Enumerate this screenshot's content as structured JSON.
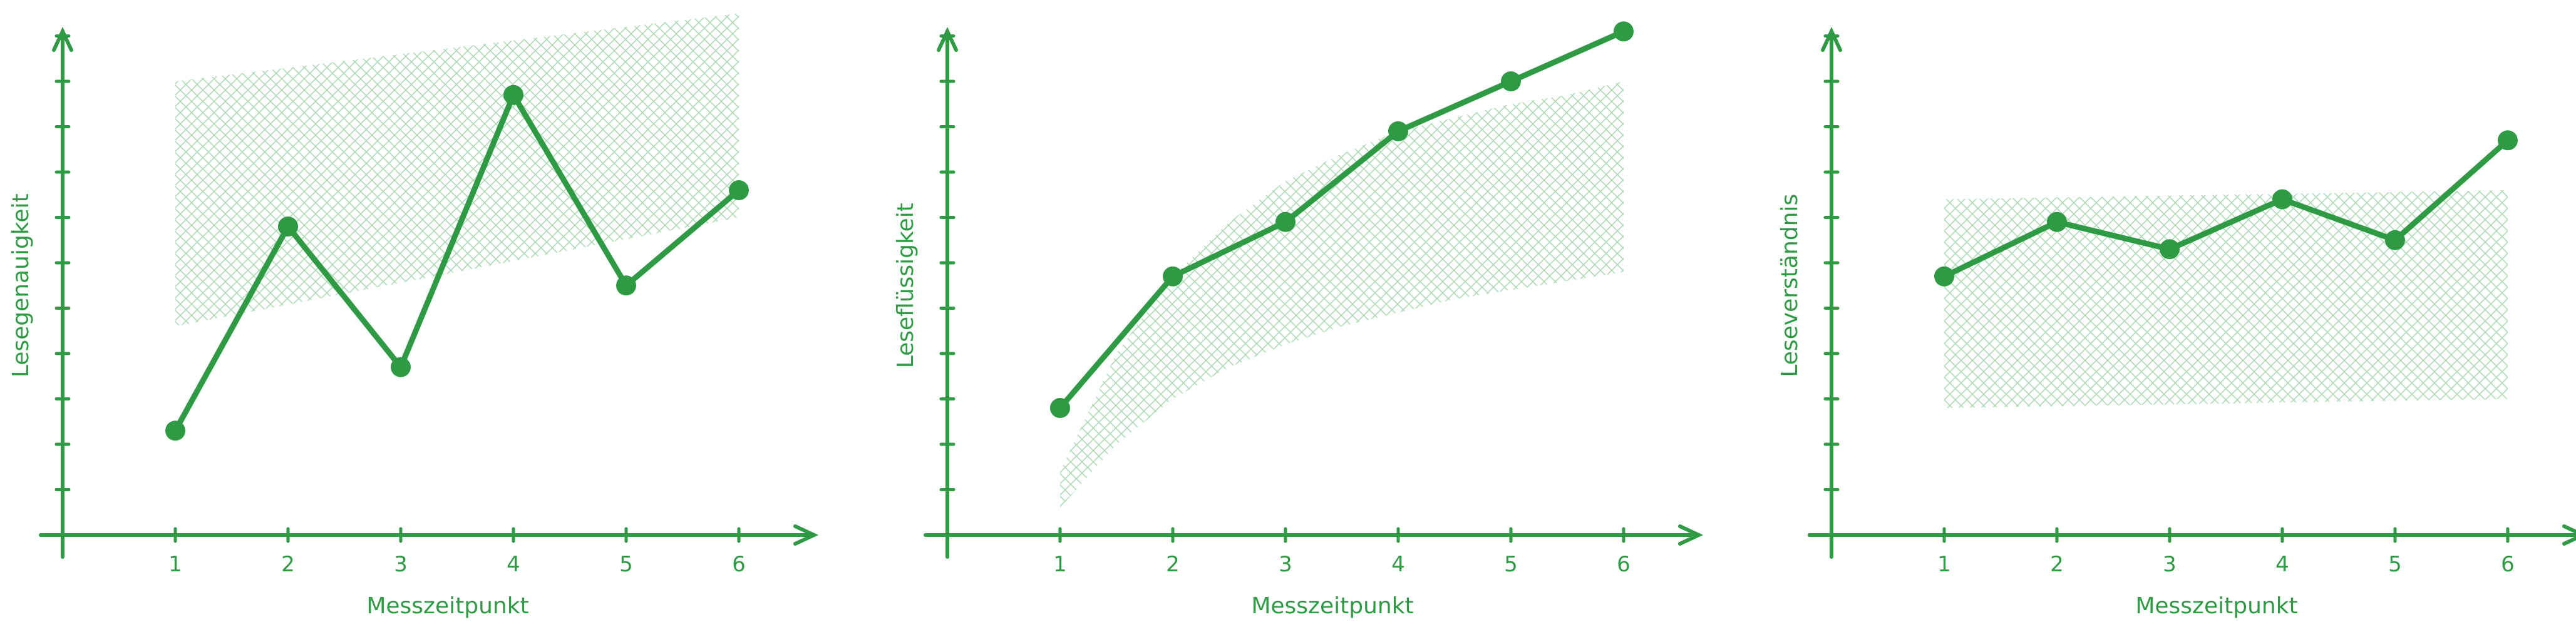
{
  "chart_data": [
    {
      "type": "line",
      "xlabel": "Messzeitpunkt",
      "ylabel": "Lesegenauigkeit",
      "x": [
        1,
        2,
        3,
        4,
        5,
        6
      ],
      "xlim": [
        0,
        6.5
      ],
      "ylim": [
        0,
        11
      ],
      "y_tick_count": 11,
      "series": [
        {
          "values": [
            2.3,
            6.8,
            3.7,
            9.7,
            5.5,
            7.6
          ]
        }
      ],
      "band": {
        "x": [
          1,
          6
        ],
        "lower": [
          4.6,
          7.0
        ],
        "upper": [
          10.0,
          11.5
        ]
      },
      "grid": false,
      "color": "#2e9a44"
    },
    {
      "type": "line",
      "xlabel": "Messzeitpunkt",
      "ylabel": "Leseflüssigkeit",
      "x": [
        1,
        2,
        3,
        4,
        5,
        6
      ],
      "xlim": [
        0,
        6.5
      ],
      "ylim": [
        0,
        11
      ],
      "y_tick_count": 11,
      "series": [
        {
          "values": [
            2.8,
            5.7,
            6.9,
            8.9,
            10.0,
            11.1
          ]
        }
      ],
      "band": {
        "x": [
          1,
          1.5,
          2,
          2.5,
          3,
          3.5,
          4,
          4.5,
          5,
          5.5,
          6
        ],
        "lower": [
          0.6,
          2.0,
          3.0,
          3.7,
          4.2,
          4.6,
          4.9,
          5.2,
          5.4,
          5.6,
          5.8
        ],
        "upper": [
          1.4,
          4.0,
          5.7,
          6.9,
          7.8,
          8.4,
          8.9,
          9.2,
          9.5,
          9.7,
          10.0
        ]
      },
      "grid": false,
      "color": "#2e9a44"
    },
    {
      "type": "line",
      "xlabel": "Messzeitpunkt",
      "ylabel": "Leseverständnis",
      "x": [
        1,
        2,
        3,
        4,
        5,
        6
      ],
      "xlim": [
        0,
        6.5
      ],
      "ylim": [
        0,
        11
      ],
      "y_tick_count": 11,
      "series": [
        {
          "values": [
            5.7,
            6.9,
            6.3,
            7.4,
            6.5,
            8.7
          ]
        }
      ],
      "band": {
        "x": [
          1,
          6
        ],
        "lower": [
          2.8,
          3.0
        ],
        "upper": [
          7.4,
          7.6
        ]
      },
      "grid": false,
      "color": "#2e9a44"
    }
  ]
}
